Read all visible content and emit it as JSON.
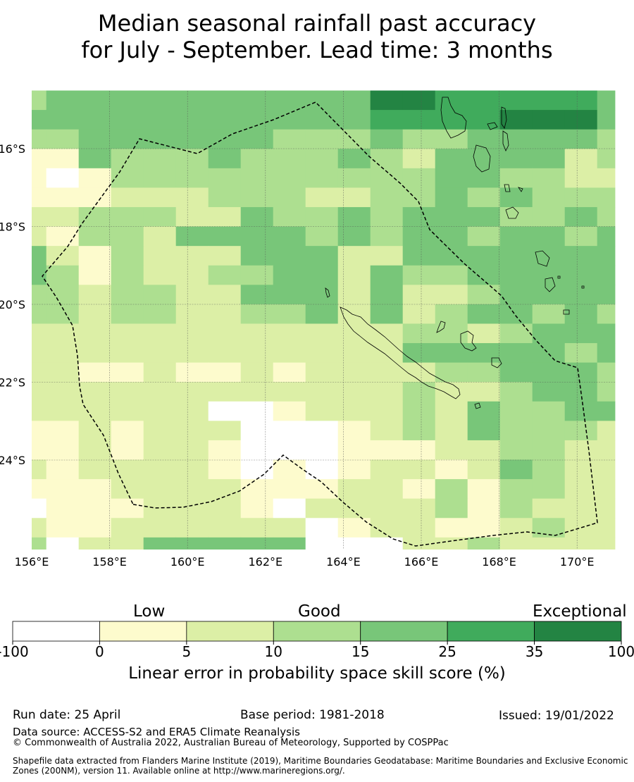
{
  "title": {
    "line1": "Median seasonal rainfall past accuracy",
    "line2": "for July - September. Lead time: 3 months"
  },
  "map": {
    "x_ticks": [
      "156°E",
      "158°E",
      "160°E",
      "162°E",
      "164°E",
      "166°E",
      "168°E",
      "170°E"
    ],
    "y_ticks": [
      "16°S",
      "18°S",
      "20°S",
      "22°S",
      "24°S"
    ],
    "grid_rows": [
      "3444444444466555554",
      "4444444444455556664",
      "3344444433343344443",
      "1143334333432444423",
      "1013333333333443322",
      "1112223332233434333",
      "2233322433434443343",
      "2133244443434434434",
      "4213222444224444444",
      "4313223344243344444",
      "3323322444242234444",
      "3323322334242344343",
      "2222222222223323444",
      "2222222222224444434",
      "2211211212222334443",
      "2222222222223223443",
      "2222220012223243344",
      "1121222000123243332",
      "1121221000111223322",
      "2122221010122124322",
      "1112222111221313322",
      "0111222102222313222",
      "2112222220122112322",
      "3022444440002232222"
    ]
  },
  "colorbar": {
    "category_labels": [
      "Low",
      "Good",
      "Exceptional"
    ],
    "tick_labels": [
      "-100",
      "0",
      "5",
      "10",
      "15",
      "25",
      "35",
      "100"
    ],
    "colors": [
      "#ffffff",
      "#fdfbcd",
      "#dcefa6",
      "#addf90",
      "#78c679",
      "#40ab5c",
      "#238443"
    ],
    "title": "Linear error in probability space skill score (%)"
  },
  "footer": {
    "run_date": "Run date: 25 April",
    "base_period": "Base period: 1981-2018",
    "issued": "Issued: 19/01/2022",
    "data_source": "Data source: ACCESS-S2 and ERA5 Climate Reanalysis",
    "copyright": "© Commonwealth of Australia 2022, Australian Bureau of Meteorology, Supported by COSPPac",
    "shapefile": "Shapefile data extracted from Flanders Marine Institute (2019), Maritime Boundaries Geodatabase: Maritime Boundaries and Exclusive Economic Zones (200NM), version 11. Available online at http://www.marineregions.org/."
  }
}
